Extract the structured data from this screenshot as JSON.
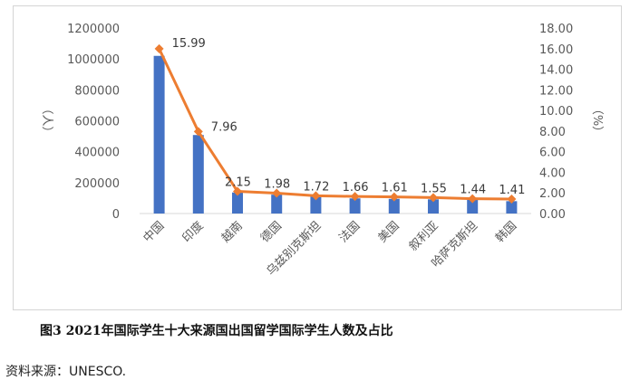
{
  "chart_data": {
    "type": "bar",
    "categories": [
      "中国",
      "印度",
      "越南",
      "德国",
      "乌兹别克斯坦",
      "法国",
      "美国",
      "叙利亚",
      "哈萨克斯坦",
      "韩国"
    ],
    "series": [
      {
        "type": "bar",
        "axis": "left",
        "color": "#4472c4",
        "values": [
          1020000,
          508000,
          136000,
          122000,
          110000,
          98000,
          95000,
          92000,
          88000,
          80000
        ]
      },
      {
        "type": "line",
        "axis": "right",
        "color": "#ed7d31",
        "values": [
          15.99,
          7.96,
          2.15,
          1.98,
          1.72,
          1.66,
          1.61,
          1.55,
          1.44,
          1.41
        ],
        "labels": [
          "15.99",
          "7.96",
          "2.15",
          "1.98",
          "1.72",
          "1.66",
          "1.61",
          "1.55",
          "1.44",
          "1.41"
        ]
      }
    ],
    "ylabel": "（人）",
    "ylabel_right": "（%）",
    "ylim": [
      0,
      1200000
    ],
    "ylim_right": [
      0,
      18
    ],
    "yticks": [
      "0",
      "200000",
      "400000",
      "600000",
      "800000",
      "1000000",
      "1200000"
    ],
    "yticks_right": [
      "0.00",
      "2.00",
      "4.00",
      "6.00",
      "8.00",
      "10.00",
      "12.00",
      "14.00",
      "16.00",
      "18.00"
    ],
    "grid": false,
    "legend": "none"
  },
  "caption": "图3 2021年国际学生十大来源国出国留学国际学生人数及占比",
  "source": "资料来源：UNESCO."
}
